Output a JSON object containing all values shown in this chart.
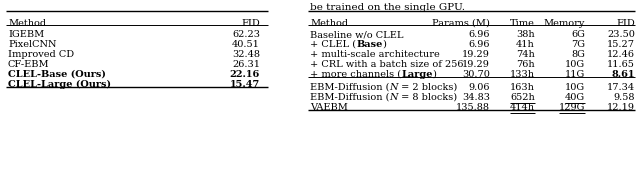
{
  "title_text": "be trained on the single GPU.",
  "left_table": {
    "headers": [
      "Method",
      "FID"
    ],
    "rows": [
      [
        "IGEBM",
        "62.23",
        false,
        false
      ],
      [
        "PixelCNN",
        "40.51",
        false,
        false
      ],
      [
        "Improved CD",
        "32.48",
        false,
        false
      ],
      [
        "CF-EBM",
        "26.31",
        false,
        false
      ],
      [
        "CLEL-Base (Ours)",
        "22.16",
        true,
        true
      ],
      [
        "CLEL-Large (Ours)",
        "15.47",
        true,
        true
      ]
    ]
  },
  "right_table": {
    "headers": [
      "Method",
      "Params (M)",
      "Time",
      "Memory",
      "FID"
    ],
    "rows": [
      [
        "Baseline w/o CLEL",
        "6.96",
        "38h",
        "6G",
        "23.50",
        false,
        false,
        false
      ],
      [
        "+ CLEL (Base)",
        "6.96",
        "41h",
        "7G",
        "15.27",
        false,
        false,
        false
      ],
      [
        "+ multi-scale architecture",
        "19.29",
        "74h",
        "8G",
        "12.46",
        false,
        false,
        false
      ],
      [
        "+ CRL with a batch size of 256",
        "19.29",
        "76h",
        "10G",
        "11.65",
        false,
        false,
        false
      ],
      [
        "+ more channels (Large)",
        "30.70",
        "133h",
        "11G",
        "8.61",
        false,
        false,
        true
      ],
      [
        "EBM-Diffusion (N = 2 blocks)",
        "9.06",
        "163h",
        "10G",
        "17.34",
        false,
        false,
        false
      ],
      [
        "EBM-Diffusion (N = 8 blocks)",
        "34.83",
        "652h",
        "40G",
        "9.58",
        true,
        true,
        false
      ],
      [
        "VAEBM",
        "135.88",
        "414h",
        "129G",
        "12.19",
        true,
        true,
        false
      ]
    ]
  },
  "font_size": 7.0,
  "bg_color": "#ffffff"
}
